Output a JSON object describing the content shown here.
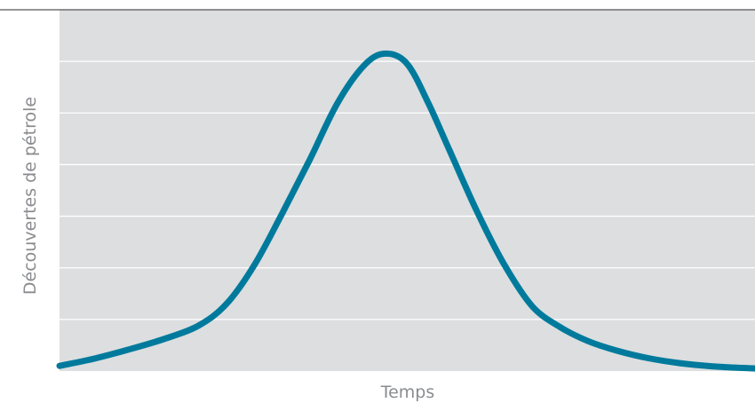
{
  "chart_data": {
    "type": "line",
    "xlabel": "Temps",
    "ylabel": "Découvertes de pétrole",
    "grid": true,
    "legend": "none",
    "ylim": [
      0,
      7
    ],
    "xlim": [
      0,
      100
    ],
    "colors": {
      "line": "#007a9c",
      "plot_background": "#dcdee0",
      "gridline": "#ffffff",
      "axis_line": "#555555",
      "label_text": "#8a8c8f"
    },
    "series": [
      {
        "x": [
          0,
          5,
          10,
          15,
          20,
          24,
          28,
          32,
          36,
          40,
          44,
          47,
          50,
          53,
          56,
          60,
          64,
          68,
          72,
          76,
          80,
          85,
          90,
          95,
          100
        ],
        "values": [
          0.1,
          0.24,
          0.42,
          0.62,
          0.88,
          1.3,
          2.05,
          3.05,
          4.1,
          5.2,
          5.95,
          6.15,
          5.95,
          5.2,
          4.3,
          3.1,
          2.05,
          1.25,
          0.85,
          0.58,
          0.4,
          0.24,
          0.14,
          0.08,
          0.05
        ]
      }
    ]
  }
}
